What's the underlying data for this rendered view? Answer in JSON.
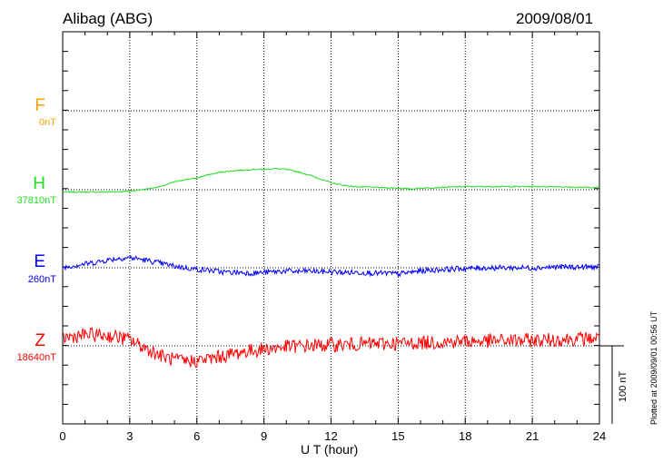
{
  "chart_data": {
    "type": "line",
    "title": "Alibag (ABG)",
    "date": "2009/08/01",
    "xlabel": "U T (hour)",
    "xlim": [
      0,
      24
    ],
    "xticks": [
      0,
      3,
      6,
      9,
      12,
      15,
      18,
      21,
      24
    ],
    "scale_bar_label": "100 nT",
    "scale_bar_nT": 100,
    "plotted_note": "Plotted at 2009/09/01 00:56 UT",
    "series": [
      {
        "name": "F",
        "baseline": "0nT",
        "color": "#f5a000",
        "x": [],
        "y": []
      },
      {
        "name": "H",
        "baseline": "37810nT",
        "color": "#22dd22",
        "x": [
          0,
          1,
          2,
          3,
          3.5,
          4,
          4.5,
          5,
          5.5,
          6,
          6.5,
          7,
          7.5,
          8,
          8.5,
          9,
          9.5,
          10,
          10.5,
          11,
          11.5,
          12,
          12.5,
          13,
          14,
          15,
          15.5,
          16,
          17,
          18,
          19,
          20,
          21,
          22,
          23,
          24
        ],
        "y": [
          -3,
          -3,
          -3,
          -2,
          0,
          2,
          5,
          10,
          13,
          15,
          19,
          22,
          24,
          25,
          26,
          26,
          27,
          26,
          23,
          19,
          14,
          9,
          6,
          4,
          3,
          2,
          1,
          2,
          3,
          4,
          4,
          4,
          4,
          4,
          3,
          3
        ]
      },
      {
        "name": "E",
        "baseline": "260nT",
        "color": "#0000ff",
        "x": [
          0,
          0.5,
          1,
          1.5,
          2,
          2.5,
          3,
          3.5,
          4,
          4.5,
          5,
          5.5,
          6,
          6.5,
          7,
          7.5,
          8,
          8.5,
          9,
          9.5,
          10,
          10.5,
          11,
          11.5,
          12,
          12.5,
          13,
          13.5,
          14,
          14.5,
          15,
          15.5,
          16,
          16.5,
          17,
          18,
          19,
          20,
          21,
          22,
          23,
          24
        ],
        "y": [
          0,
          3,
          5,
          7,
          10,
          12,
          13,
          11,
          8,
          5,
          2,
          0,
          -2,
          -3,
          -5,
          -6,
          -6,
          -7,
          -6,
          -5,
          -4,
          -5,
          -4,
          -5,
          -5,
          -6,
          -6,
          -6,
          -7,
          -7,
          -8,
          -6,
          -4,
          -3,
          -2,
          -1,
          0,
          0,
          0,
          1,
          1,
          1
        ]
      },
      {
        "name": "Z",
        "baseline": "18640nT",
        "color": "#ff0000",
        "x": [
          0,
          0.5,
          1,
          1.5,
          2,
          2.5,
          3,
          3.5,
          4,
          4.5,
          5,
          5.5,
          6,
          6.5,
          7,
          7.5,
          8,
          8.5,
          9,
          9.5,
          10,
          11,
          12,
          13,
          14,
          15,
          16,
          17,
          18,
          19,
          20,
          21,
          22,
          23,
          24
        ],
        "y": [
          10,
          12,
          14,
          14,
          13,
          11,
          8,
          0,
          -7,
          -14,
          -18,
          -20,
          -19,
          -17,
          -14,
          -11,
          -8,
          -6,
          -4,
          -3,
          -1,
          0,
          1,
          2,
          3,
          3,
          4,
          5,
          6,
          6,
          7,
          7,
          8,
          9,
          10
        ]
      }
    ]
  }
}
